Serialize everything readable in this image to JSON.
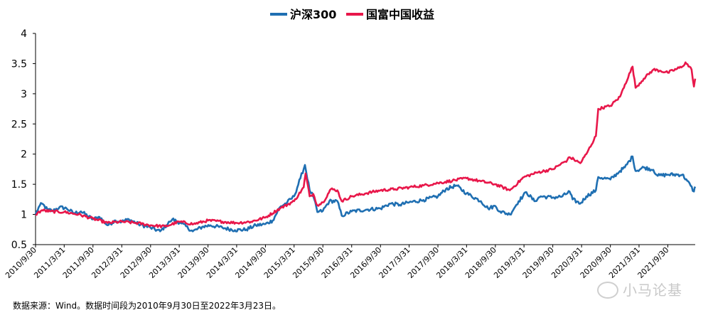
{
  "chart_data": {
    "type": "line",
    "title": "",
    "xlabel": "",
    "ylabel": "",
    "ylim": [
      0.5,
      4
    ],
    "yticks": [
      "0.5",
      "1",
      "1.5",
      "2",
      "2.5",
      "3",
      "3.5",
      "4"
    ],
    "grid": false,
    "legend": "top-center",
    "x_tick_labels": [
      "2010/9/30",
      "2011/3/31",
      "2011/9/30",
      "2012/3/31",
      "2012/9/30",
      "2013/3/31",
      "2013/9/30",
      "2014/3/31",
      "2014/9/30",
      "2015/3/31",
      "2015/9/30",
      "2016/3/31",
      "2016/9/30",
      "2017/3/31",
      "2017/9/30",
      "2018/3/31",
      "2018/9/30",
      "2019/3/31",
      "2019/9/30",
      "2020/3/31",
      "2020/9/30",
      "2021/3/31",
      "2021/9/30"
    ],
    "x_range": [
      "2010/9/30",
      "2022/3/23"
    ],
    "series": [
      {
        "name": "沪深300",
        "color": "#1f6fb2",
        "points": [
          [
            "2010/9/30",
            1.0
          ],
          [
            "2010/10/20",
            1.12
          ],
          [
            "2010/11/10",
            1.18
          ],
          [
            "2010/12/15",
            1.08
          ],
          [
            "2011/1/20",
            1.06
          ],
          [
            "2011/3/1",
            1.12
          ],
          [
            "2011/4/15",
            1.1
          ],
          [
            "2011/6/1",
            1.02
          ],
          [
            "2011/7/15",
            1.05
          ],
          [
            "2011/9/30",
            0.92
          ],
          [
            "2011/11/10",
            0.96
          ],
          [
            "2011/12/31",
            0.82
          ],
          [
            "2012/2/20",
            0.9
          ],
          [
            "2012/3/31",
            0.88
          ],
          [
            "2012/5/15",
            0.92
          ],
          [
            "2012/7/15",
            0.84
          ],
          [
            "2012/9/30",
            0.78
          ],
          [
            "2012/11/30",
            0.72
          ],
          [
            "2013/1/31",
            0.88
          ],
          [
            "2013/2/15",
            0.92
          ],
          [
            "2013/4/15",
            0.85
          ],
          [
            "2013/6/25",
            0.72
          ],
          [
            "2013/8/31",
            0.8
          ],
          [
            "2013/10/15",
            0.82
          ],
          [
            "2013/12/31",
            0.78
          ],
          [
            "2014/3/20",
            0.74
          ],
          [
            "2014/5/31",
            0.75
          ],
          [
            "2014/7/31",
            0.82
          ],
          [
            "2014/9/30",
            0.84
          ],
          [
            "2014/11/15",
            0.9
          ],
          [
            "2014/12/31",
            1.12
          ],
          [
            "2015/2/15",
            1.2
          ],
          [
            "2015/3/31",
            1.3
          ],
          [
            "2015/5/10",
            1.6
          ],
          [
            "2015/6/8",
            1.82
          ],
          [
            "2015/7/8",
            1.4
          ],
          [
            "2015/7/31",
            1.3
          ],
          [
            "2015/8/26",
            1.04
          ],
          [
            "2015/9/30",
            1.06
          ],
          [
            "2015/11/10",
            1.22
          ],
          [
            "2015/12/31",
            1.22
          ],
          [
            "2016/1/28",
            0.98
          ],
          [
            "2016/3/31",
            1.05
          ],
          [
            "2016/6/30",
            1.08
          ],
          [
            "2016/9/30",
            1.1
          ],
          [
            "2016/11/30",
            1.18
          ],
          [
            "2017/1/31",
            1.16
          ],
          [
            "2017/3/31",
            1.2
          ],
          [
            "2017/6/30",
            1.24
          ],
          [
            "2017/9/30",
            1.3
          ],
          [
            "2017/11/20",
            1.42
          ],
          [
            "2018/1/24",
            1.48
          ],
          [
            "2018/3/31",
            1.35
          ],
          [
            "2018/6/30",
            1.22
          ],
          [
            "2018/8/15",
            1.1
          ],
          [
            "2018/9/30",
            1.14
          ],
          [
            "2018/10/30",
            1.05
          ],
          [
            "2018/12/31",
            1.0
          ],
          [
            "2019/2/25",
            1.22
          ],
          [
            "2019/4/15",
            1.37
          ],
          [
            "2019/6/5",
            1.22
          ],
          [
            "2019/7/15",
            1.3
          ],
          [
            "2019/9/30",
            1.28
          ],
          [
            "2019/11/30",
            1.3
          ],
          [
            "2020/1/15",
            1.38
          ],
          [
            "2020/2/3",
            1.25
          ],
          [
            "2020/3/23",
            1.18
          ],
          [
            "2020/4/30",
            1.3
          ],
          [
            "2020/6/30",
            1.4
          ],
          [
            "2020/7/15",
            1.62
          ],
          [
            "2020/9/30",
            1.58
          ],
          [
            "2020/11/30",
            1.72
          ],
          [
            "2020/12/31",
            1.78
          ],
          [
            "2021/2/18",
            1.96
          ],
          [
            "2021/3/9",
            1.72
          ],
          [
            "2021/4/30",
            1.78
          ],
          [
            "2021/6/30",
            1.74
          ],
          [
            "2021/7/28",
            1.64
          ],
          [
            "2021/9/30",
            1.66
          ],
          [
            "2021/12/31",
            1.66
          ],
          [
            "2022/1/31",
            1.56
          ],
          [
            "2022/3/15",
            1.38
          ],
          [
            "2022/3/23",
            1.46
          ]
        ]
      },
      {
        "name": "国富中国收益",
        "color": "#e8174a",
        "points": [
          [
            "2010/9/30",
            1.0
          ],
          [
            "2010/11/10",
            1.07
          ],
          [
            "2010/12/31",
            1.05
          ],
          [
            "2011/3/31",
            1.04
          ],
          [
            "2011/6/30",
            1.0
          ],
          [
            "2011/9/30",
            0.93
          ],
          [
            "2011/12/31",
            0.86
          ],
          [
            "2012/3/31",
            0.88
          ],
          [
            "2012/6/30",
            0.86
          ],
          [
            "2012/9/30",
            0.82
          ],
          [
            "2012/12/31",
            0.8
          ],
          [
            "2013/3/31",
            0.88
          ],
          [
            "2013/6/30",
            0.84
          ],
          [
            "2013/9/30",
            0.9
          ],
          [
            "2013/12/31",
            0.88
          ],
          [
            "2014/3/31",
            0.86
          ],
          [
            "2014/6/30",
            0.88
          ],
          [
            "2014/9/30",
            0.95
          ],
          [
            "2014/12/31",
            1.1
          ],
          [
            "2015/3/31",
            1.22
          ],
          [
            "2015/5/31",
            1.45
          ],
          [
            "2015/6/12",
            1.68
          ],
          [
            "2015/7/8",
            1.3
          ],
          [
            "2015/7/31",
            1.34
          ],
          [
            "2015/8/26",
            1.15
          ],
          [
            "2015/9/30",
            1.2
          ],
          [
            "2015/11/20",
            1.42
          ],
          [
            "2015/12/31",
            1.4
          ],
          [
            "2016/1/28",
            1.22
          ],
          [
            "2016/3/31",
            1.3
          ],
          [
            "2016/6/30",
            1.35
          ],
          [
            "2016/9/30",
            1.4
          ],
          [
            "2016/12/31",
            1.42
          ],
          [
            "2017/3/31",
            1.45
          ],
          [
            "2017/6/30",
            1.48
          ],
          [
            "2017/9/30",
            1.52
          ],
          [
            "2017/12/31",
            1.56
          ],
          [
            "2018/3/31",
            1.6
          ],
          [
            "2018/6/30",
            1.55
          ],
          [
            "2018/9/30",
            1.5
          ],
          [
            "2018/12/31",
            1.4
          ],
          [
            "2019/3/31",
            1.62
          ],
          [
            "2019/6/30",
            1.7
          ],
          [
            "2019/9/30",
            1.75
          ],
          [
            "2019/12/31",
            1.9
          ],
          [
            "2020/1/15",
            1.95
          ],
          [
            "2020/3/23",
            1.85
          ],
          [
            "2020/4/30",
            2.0
          ],
          [
            "2020/6/30",
            2.3
          ],
          [
            "2020/7/15",
            2.75
          ],
          [
            "2020/9/30",
            2.8
          ],
          [
            "2020/11/30",
            2.95
          ],
          [
            "2020/12/31",
            3.15
          ],
          [
            "2021/2/18",
            3.45
          ],
          [
            "2021/3/9",
            3.1
          ],
          [
            "2021/4/30",
            3.25
          ],
          [
            "2021/6/30",
            3.4
          ],
          [
            "2021/8/15",
            3.38
          ],
          [
            "2021/9/30",
            3.35
          ],
          [
            "2021/12/31",
            3.45
          ],
          [
            "2022/1/20",
            3.52
          ],
          [
            "2022/2/28",
            3.4
          ],
          [
            "2022/3/15",
            3.12
          ],
          [
            "2022/3/23",
            3.25
          ]
        ]
      }
    ]
  },
  "source_note": "数据来源：Wind。数据时间段为2010年9月30日至2022年3月23日。",
  "watermark": "小马论基"
}
